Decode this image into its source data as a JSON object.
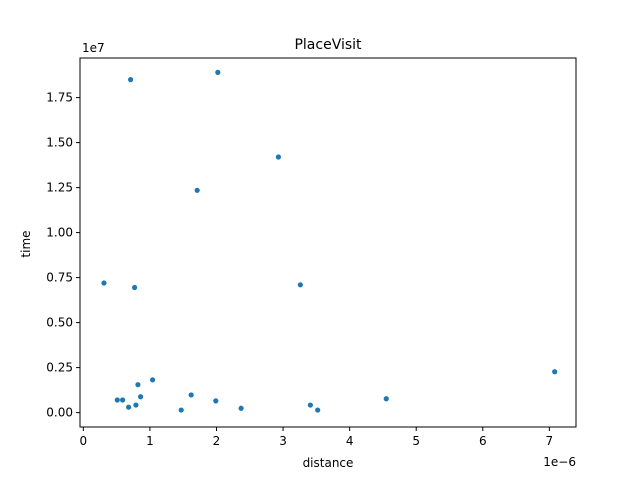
{
  "chart_data": {
    "type": "scatter",
    "title": "PlaceVisit",
    "xlabel": "distance",
    "ylabel": "time",
    "x_offset_label": "1e−6",
    "y_offset_label": "1e7",
    "xlim": [
      -0.05,
      7.4
    ],
    "ylim": [
      -0.08,
      1.97
    ],
    "x_ticks": [
      0,
      1,
      2,
      3,
      4,
      5,
      6,
      7
    ],
    "x_tick_labels": [
      "0",
      "1",
      "2",
      "3",
      "4",
      "5",
      "6",
      "7"
    ],
    "y_ticks": [
      0.0,
      0.25,
      0.5,
      0.75,
      1.0,
      1.25,
      1.5,
      1.75
    ],
    "y_tick_labels": [
      "0.00",
      "0.25",
      "0.50",
      "0.75",
      "1.00",
      "1.25",
      "1.50",
      "1.75"
    ],
    "grid": false,
    "marker_color": "#1f77b4",
    "series": [
      {
        "points": [
          {
            "x": 0.31,
            "y": 0.72
          },
          {
            "x": 0.71,
            "y": 1.85
          },
          {
            "x": 2.02,
            "y": 1.89
          },
          {
            "x": 2.93,
            "y": 1.42
          },
          {
            "x": 1.71,
            "y": 1.235
          },
          {
            "x": 0.77,
            "y": 0.695
          },
          {
            "x": 3.26,
            "y": 0.71
          },
          {
            "x": 7.08,
            "y": 0.227
          },
          {
            "x": 1.04,
            "y": 0.182
          },
          {
            "x": 0.82,
            "y": 0.155
          },
          {
            "x": 1.62,
            "y": 0.098
          },
          {
            "x": 0.86,
            "y": 0.088
          },
          {
            "x": 4.55,
            "y": 0.077
          },
          {
            "x": 0.51,
            "y": 0.07
          },
          {
            "x": 0.59,
            "y": 0.07
          },
          {
            "x": 1.99,
            "y": 0.065
          },
          {
            "x": 0.79,
            "y": 0.042
          },
          {
            "x": 3.41,
            "y": 0.042
          },
          {
            "x": 0.68,
            "y": 0.03
          },
          {
            "x": 2.37,
            "y": 0.024
          },
          {
            "x": 1.47,
            "y": 0.014
          },
          {
            "x": 3.52,
            "y": 0.014
          }
        ]
      }
    ]
  }
}
